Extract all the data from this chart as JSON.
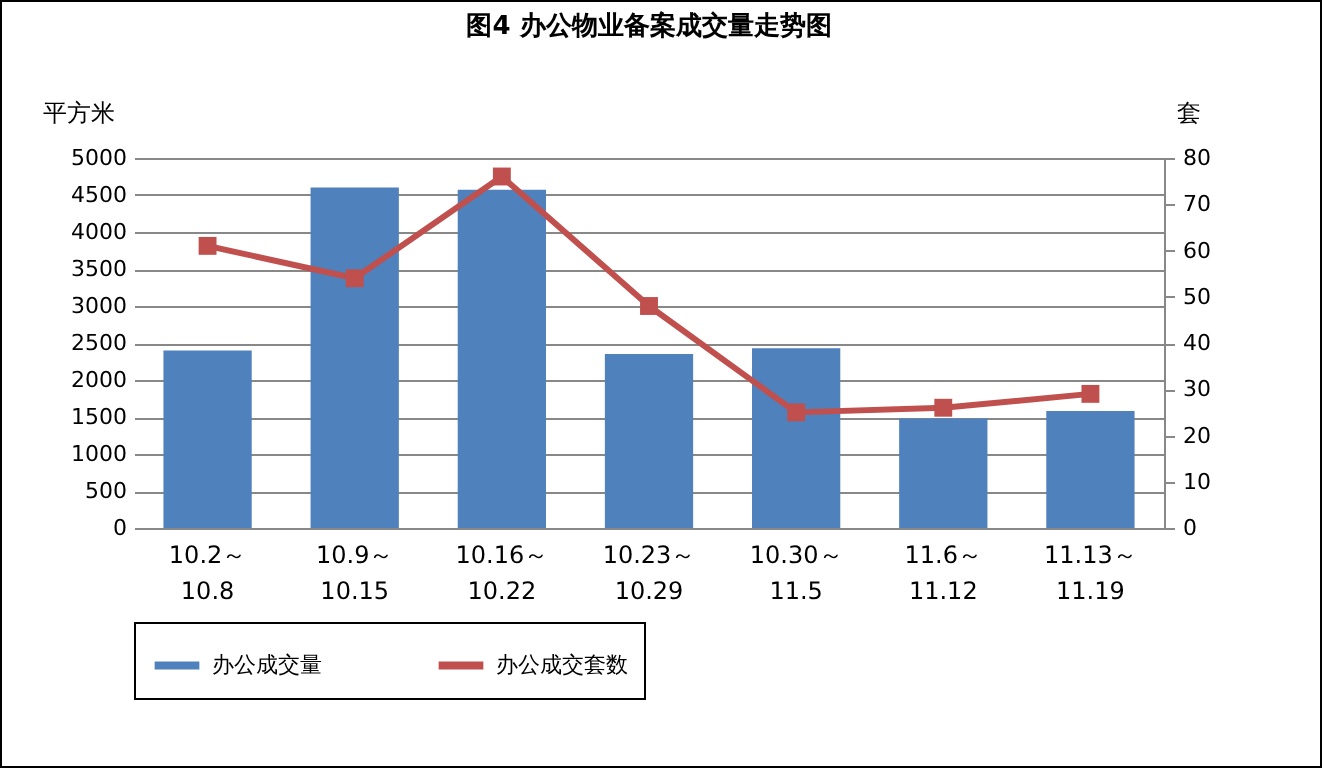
{
  "chart_data": {
    "type": "bar",
    "title": "图4   办公物业备案成交量走势图",
    "ylabel": "平方米",
    "y2label": "套",
    "categories": [
      "10.2～\n10.8",
      "10.9～\n10.15",
      "10.16～\n10.22",
      "10.23～\n10.29",
      "10.30～\n11.5",
      "11.6～\n11.12",
      "11.13～\n11.19"
    ],
    "series": [
      {
        "name": "办公成交量",
        "color": "#4f81bd",
        "values": [
          2400,
          4600,
          4570,
          2350,
          2430,
          1480,
          1580
        ]
      },
      {
        "name": "办公成交套数",
        "type": "line",
        "axis": "y2",
        "color": "#c0504d",
        "values": [
          61,
          54,
          76,
          48,
          25,
          26,
          29
        ]
      }
    ],
    "ylim": [
      0,
      5000
    ],
    "yticks": [
      0,
      500,
      1000,
      1500,
      2000,
      2500,
      3000,
      3500,
      4000,
      4500,
      5000
    ],
    "y2lim": [
      0,
      80
    ],
    "y2ticks": [
      0,
      10,
      20,
      30,
      40,
      50,
      60,
      70,
      80
    ],
    "grid": "y",
    "legend": "bottom",
    "marker": "square"
  }
}
